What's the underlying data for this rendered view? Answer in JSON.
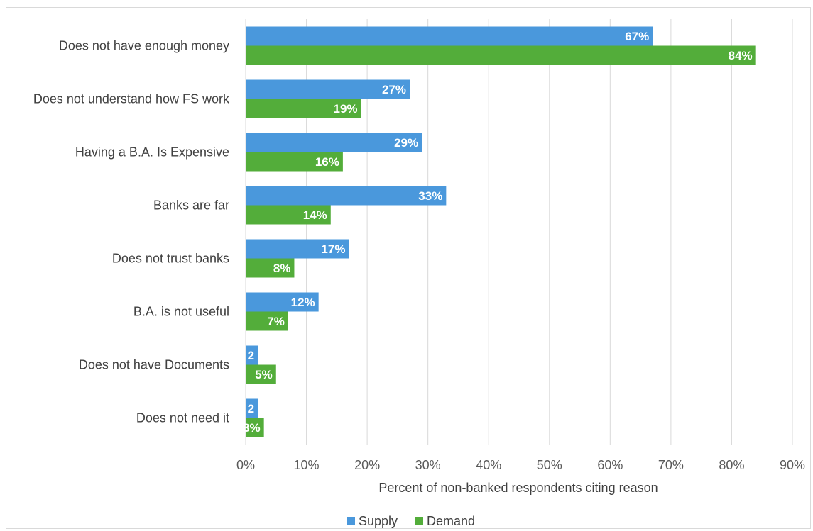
{
  "chart_data": {
    "type": "bar",
    "orientation": "horizontal",
    "categories": [
      "Does not have enough money",
      "Does not understand how FS work",
      "Having a B.A. Is Expensive",
      "Banks are far",
      "Does not trust banks",
      "B.A. is not useful",
      "Does not have Documents",
      "Does not need it"
    ],
    "series": [
      {
        "name": "Supply",
        "color": "#4a98dc",
        "values": [
          67,
          27,
          29,
          33,
          17,
          12,
          2,
          2
        ],
        "labels": [
          "67%",
          "27%",
          "29%",
          "33%",
          "17%",
          "12%",
          "2",
          "2"
        ]
      },
      {
        "name": "Demand",
        "color": "#53ad3a",
        "values": [
          84,
          19,
          16,
          14,
          8,
          7,
          5,
          3
        ],
        "labels": [
          "84%",
          "19%",
          "16%",
          "14%",
          "8%",
          "7%",
          "5%",
          "3%"
        ]
      }
    ],
    "xlim": [
      0,
      90
    ],
    "xticks": [
      "0%",
      "10%",
      "20%",
      "30%",
      "40%",
      "50%",
      "60%",
      "70%",
      "80%",
      "90%"
    ],
    "xlabel": "Percent of non-banked respondents citing reason",
    "grid": "vertical",
    "legend_position": "bottom"
  }
}
